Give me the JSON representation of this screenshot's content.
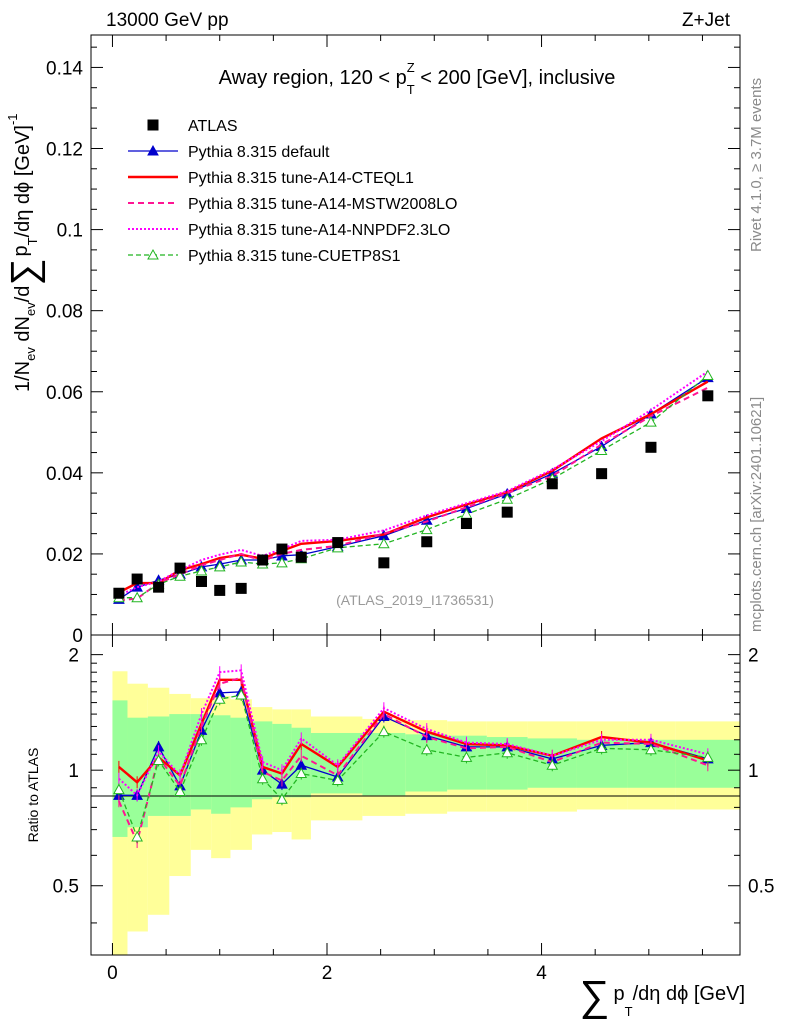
{
  "header": {
    "energy": "13000 GeV pp",
    "process": "Z+Jet"
  },
  "side": {
    "rivet": "Rivet 4.1.0, ≥ 3.7M events",
    "mcplots": "mcplots.cern.ch [arXiv:2401.10621]"
  },
  "colors": {
    "atlas": "#000000",
    "default": "#0000cc",
    "cteql1": "#ff0000",
    "mstw": "#ff1493",
    "nnpdf": "#ff00ff",
    "cuetp": "#22b522",
    "band_green": "#99ff99",
    "band_yellow": "#ffff99"
  },
  "chart_data": [
    {
      "type": "line",
      "title": "Away region, 120 < p_T^Z < 200 [GeV], inclusive",
      "title_parts": {
        "before": "Away region, 120 < p",
        "sub": "T",
        "sup": "Z",
        "after": " < 200 [GeV], inclusive"
      },
      "ylabel": "1/N_ev dN_ev/d∑ p_T /dη dϕ [GeV]^-1",
      "ylabel_parts": {
        "one": "1/N",
        "ev": "ev",
        "dN": " dN",
        "slash": "/d",
        "sigma": "∑",
        "p": "p",
        "T": "T",
        "rest": "/dη dϕ  [GeV]",
        "minus1": "-1"
      },
      "source": "(ATLAS_2019_I1736531)",
      "xlim": [
        -0.2,
        5.85
      ],
      "ylim": [
        0,
        0.148
      ],
      "yticks": [
        0,
        0.02,
        0.04,
        0.06,
        0.08,
        0.1,
        0.12,
        0.14
      ],
      "ytick_labels": [
        "0",
        "0.02",
        "0.04",
        "0.06",
        "0.08",
        "0.1",
        "0.12",
        "0.14"
      ],
      "x": [
        0.06,
        0.23,
        0.43,
        0.63,
        0.83,
        1.0,
        1.2,
        1.4,
        1.58,
        1.76,
        2.1,
        2.53,
        2.93,
        3.3,
        3.68,
        4.1,
        4.56,
        5.02,
        5.55
      ],
      "series": [
        {
          "name": "ATLAS",
          "key": "atlas",
          "values": [
            0.0103,
            0.0138,
            0.0118,
            0.0165,
            0.0132,
            0.011,
            0.0115,
            0.0185,
            0.0212,
            0.0192,
            0.0228,
            0.0178,
            0.023,
            0.0275,
            0.0303,
            0.0373,
            0.0398,
            0.0463,
            0.059
          ]
        },
        {
          "name": "Pythia 8.315 default",
          "key": "default",
          "values": [
            0.0088,
            0.0118,
            0.0135,
            0.015,
            0.0168,
            0.0175,
            0.0185,
            0.0185,
            0.0195,
            0.0198,
            0.0218,
            0.0245,
            0.0283,
            0.0312,
            0.0348,
            0.0398,
            0.0465,
            0.0545,
            0.0635
          ]
        },
        {
          "name": "Pythia 8.315 tune-A14-CTEQL1",
          "key": "cteql1",
          "values": [
            0.0105,
            0.0128,
            0.0128,
            0.016,
            0.0175,
            0.019,
            0.0198,
            0.0188,
            0.0208,
            0.0225,
            0.0232,
            0.0248,
            0.029,
            0.0322,
            0.0352,
            0.0405,
            0.0485,
            0.0545,
            0.0625
          ]
        },
        {
          "name": "Pythia 8.315 tune-A14-MSTW2008LO",
          "key": "mstw",
          "values": [
            0.0085,
            0.009,
            0.0128,
            0.015,
            0.0172,
            0.0185,
            0.02,
            0.0183,
            0.02,
            0.021,
            0.022,
            0.025,
            0.028,
            0.0315,
            0.035,
            0.0392,
            0.047,
            0.054,
            0.061
          ]
        },
        {
          "name": "Pythia 8.315 tune-A14-NNPDF2.3LO",
          "key": "nnpdf",
          "values": [
            0.0098,
            0.0118,
            0.0132,
            0.016,
            0.0185,
            0.0198,
            0.021,
            0.0195,
            0.0212,
            0.0232,
            0.0235,
            0.0258,
            0.0295,
            0.0325,
            0.0355,
            0.0408,
            0.0478,
            0.0555,
            0.065
          ]
        },
        {
          "name": "Pythia 8.315 tune-CUETP8S1",
          "key": "cuetp",
          "values": [
            0.0092,
            0.0092,
            0.0125,
            0.0145,
            0.0158,
            0.0168,
            0.018,
            0.0175,
            0.0178,
            0.0188,
            0.0215,
            0.0225,
            0.026,
            0.0298,
            0.0335,
            0.0385,
            0.0455,
            0.0525,
            0.064
          ]
        }
      ]
    },
    {
      "type": "line",
      "title": "",
      "ylabel": "Ratio to ATLAS",
      "xlabel": "∑ p_T /dη dϕ [GeV]",
      "xlabel_parts": {
        "sigma": "∑",
        "p": "p",
        "T": "T",
        "rest": "/dη dϕ [GeV]"
      },
      "xlim": [
        -0.2,
        5.85
      ],
      "ylim": [
        0.33,
        2.25
      ],
      "xticks": [
        0,
        2,
        4
      ],
      "xtick_labels": [
        "0",
        "2",
        "4"
      ],
      "yticks": [
        0.5,
        1,
        2
      ],
      "ytick_labels": [
        "0.5",
        "1",
        "2"
      ],
      "bin_edges": [
        0.0,
        0.14,
        0.33,
        0.53,
        0.73,
        0.92,
        1.1,
        1.3,
        1.49,
        1.67,
        1.85,
        2.33,
        2.73,
        3.12,
        3.49,
        3.87,
        4.33,
        4.8,
        5.25,
        5.85
      ],
      "band_green": [
        [
          0.67,
          1.52
        ],
        [
          0.71,
          1.37
        ],
        [
          0.76,
          1.38
        ],
        [
          0.76,
          1.4
        ],
        [
          0.79,
          1.4
        ],
        [
          0.77,
          1.39
        ],
        [
          0.8,
          1.37
        ],
        [
          0.84,
          1.34
        ],
        [
          0.85,
          1.32
        ],
        [
          0.85,
          1.29
        ],
        [
          0.87,
          1.25
        ],
        [
          0.86,
          1.25
        ],
        [
          0.88,
          1.24
        ],
        [
          0.89,
          1.23
        ],
        [
          0.89,
          1.22
        ],
        [
          0.9,
          1.21
        ],
        [
          0.9,
          1.2
        ],
        [
          0.9,
          1.2
        ],
        [
          0.9,
          1.2
        ]
      ],
      "band_yellow": [
        [
          0.33,
          1.81
        ],
        [
          0.38,
          1.68
        ],
        [
          0.42,
          1.64
        ],
        [
          0.53,
          1.58
        ],
        [
          0.62,
          1.54
        ],
        [
          0.59,
          1.56
        ],
        [
          0.62,
          1.53
        ],
        [
          0.68,
          1.46
        ],
        [
          0.69,
          1.44
        ],
        [
          0.66,
          1.44
        ],
        [
          0.74,
          1.38
        ],
        [
          0.76,
          1.36
        ],
        [
          0.77,
          1.35
        ],
        [
          0.78,
          1.34
        ],
        [
          0.78,
          1.34
        ],
        [
          0.78,
          1.34
        ],
        [
          0.79,
          1.34
        ],
        [
          0.79,
          1.34
        ],
        [
          0.79,
          1.34
        ]
      ],
      "x": [
        0.06,
        0.23,
        0.43,
        0.63,
        0.83,
        1.0,
        1.2,
        1.4,
        1.58,
        1.76,
        2.1,
        2.53,
        2.93,
        3.3,
        3.68,
        4.1,
        4.56,
        5.02,
        5.55
      ],
      "series": [
        {
          "name": "Pythia 8.315 default",
          "key": "default",
          "values": [
            0.86,
            0.86,
            1.15,
            0.91,
            1.27,
            1.59,
            1.6,
            1.0,
            0.92,
            1.03,
            0.96,
            1.38,
            1.23,
            1.15,
            1.15,
            1.07,
            1.16,
            1.18,
            1.07
          ]
        },
        {
          "name": "Pythia 8.315 tune-A14-CTEQL1",
          "key": "cteql1",
          "values": [
            1.02,
            0.93,
            1.08,
            0.97,
            1.32,
            1.72,
            1.72,
            1.02,
            0.98,
            1.17,
            1.02,
            1.42,
            1.26,
            1.17,
            1.16,
            1.09,
            1.22,
            1.18,
            1.06
          ]
        },
        {
          "name": "Pythia 8.315 tune-A14-MSTW2008LO",
          "key": "mstw",
          "values": [
            0.83,
            0.65,
            1.08,
            0.91,
            1.3,
            1.68,
            1.74,
            0.99,
            0.94,
            1.09,
            0.97,
            1.4,
            1.22,
            1.14,
            1.15,
            1.05,
            1.18,
            1.17,
            1.03
          ]
        },
        {
          "name": "Pythia 8.315 tune-A14-NNPDF2.3LO",
          "key": "nnpdf",
          "values": [
            0.95,
            0.86,
            1.12,
            0.97,
            1.4,
            1.8,
            1.82,
            1.05,
            1.0,
            1.21,
            1.03,
            1.45,
            1.28,
            1.18,
            1.17,
            1.09,
            1.2,
            1.2,
            1.1
          ]
        },
        {
          "name": "Pythia 8.315 tune-CUETP8S1",
          "key": "cuetp",
          "values": [
            0.89,
            0.67,
            1.06,
            0.88,
            1.2,
            1.53,
            1.57,
            0.95,
            0.84,
            0.98,
            0.94,
            1.26,
            1.13,
            1.08,
            1.11,
            1.03,
            1.14,
            1.13,
            1.08
          ]
        }
      ]
    }
  ]
}
